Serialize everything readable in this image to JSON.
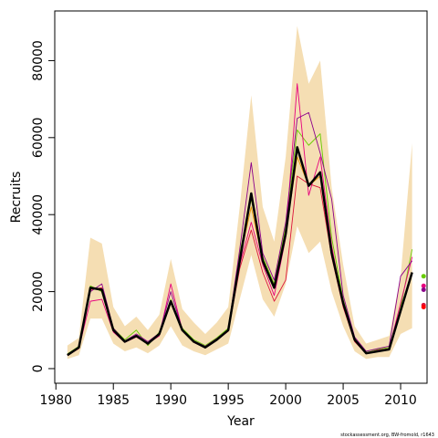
{
  "chart_data": {
    "type": "line",
    "xlabel": "Year",
    "ylabel": "Recruits",
    "footnote": "stockassessment.org, BW-fromold, r1643",
    "x": [
      1981,
      1982,
      1983,
      1984,
      1985,
      1986,
      1987,
      1988,
      1989,
      1990,
      1991,
      1992,
      1993,
      1994,
      1995,
      1996,
      1997,
      1998,
      1999,
      2000,
      2001,
      2002,
      2003,
      2004,
      2005,
      2006,
      2007,
      2008,
      2009,
      2010,
      2011
    ],
    "band": {
      "color": "#f5deb3",
      "upper": [
        6000,
        8000,
        34000,
        32500,
        16000,
        11000,
        13500,
        10000,
        14000,
        28500,
        15500,
        12000,
        9000,
        12000,
        16000,
        42000,
        71000,
        42000,
        33000,
        55000,
        89000,
        74000,
        80000,
        47000,
        27000,
        11000,
        6500,
        7500,
        8500,
        24000,
        58500
      ],
      "lower": [
        2500,
        3500,
        13000,
        13000,
        6500,
        4500,
        5500,
        4000,
        6000,
        11000,
        6000,
        4500,
        3500,
        5000,
        6500,
        18000,
        29500,
        18000,
        13500,
        22000,
        37000,
        30000,
        33000,
        20000,
        11000,
        4500,
        2500,
        3000,
        3000,
        9000,
        10500
      ]
    },
    "series": [
      {
        "color": "#66cc00",
        "values": [
          3800,
          5800,
          21500,
          20000,
          10500,
          7500,
          10000,
          6000,
          9500,
          18000,
          10500,
          7500,
          6000,
          8000,
          10500,
          30000,
          44000,
          29000,
          22000,
          37000,
          62000,
          58000,
          61000,
          34000,
          18000,
          8000,
          4500,
          5000,
          5500,
          16000,
          31000
        ]
      },
      {
        "color": "#e6007e",
        "values": [
          3600,
          5300,
          17500,
          18000,
          9500,
          6800,
          8200,
          6500,
          8500,
          22000,
          10000,
          6800,
          5500,
          7500,
          9800,
          27000,
          38000,
          27000,
          19000,
          34000,
          74000,
          45000,
          55000,
          32000,
          16500,
          7200,
          4000,
          4800,
          5200,
          17000,
          29000
        ]
      },
      {
        "color": "#8b008b",
        "values": [
          3700,
          5600,
          20000,
          22000,
          10500,
          7200,
          9000,
          7000,
          9200,
          20000,
          10200,
          7200,
          5800,
          7800,
          10200,
          31000,
          53500,
          30000,
          23000,
          38000,
          65000,
          66500,
          56000,
          44000,
          19000,
          8200,
          4500,
          5200,
          5800,
          24000,
          28000
        ]
      },
      {
        "color": "#dc143c",
        "values": [
          3400,
          5200,
          20500,
          21000,
          9800,
          6900,
          8400,
          6300,
          8800,
          17000,
          9800,
          6900,
          5400,
          7400,
          9700,
          26000,
          36000,
          25000,
          17500,
          23000,
          50000,
          48000,
          47000,
          29000,
          16000,
          7000,
          3900,
          4600,
          5000,
          15500,
          24500
        ]
      },
      {
        "color": "#e69500",
        "values": [
          3500,
          5400,
          21000,
          20500,
          10000,
          7000,
          8500,
          6500,
          9000,
          17500,
          10000,
          7000,
          5500,
          7500,
          10000,
          28500,
          42000,
          28000,
          21500,
          35000,
          55000,
          47500,
          50000,
          30500,
          17000,
          7500,
          4000,
          4500,
          5000,
          15000,
          25000
        ]
      },
      {
        "color": "#000000",
        "values": [
          3500,
          5500,
          21000,
          20500,
          10000,
          7000,
          8500,
          6500,
          9000,
          17500,
          10000,
          7000,
          5500,
          7500,
          10000,
          28000,
          45500,
          28000,
          21000,
          35000,
          57500,
          47500,
          51000,
          30000,
          17000,
          7500,
          4000,
          4500,
          5000,
          15000,
          25000
        ]
      }
    ],
    "endpoints": {
      "x": 2012,
      "values": [
        24000,
        21500,
        20500,
        16500,
        16000
      ],
      "colors": [
        "#66cc00",
        "#e6007e",
        "#8b008b",
        "#dc143c",
        "#ff0000"
      ]
    },
    "xlim": [
      1979.9,
      2012.3
    ],
    "ylim": [
      -3800,
      92900
    ],
    "xticks": [
      1980,
      1985,
      1990,
      1995,
      2000,
      2005,
      2010
    ],
    "yticks": [
      0,
      20000,
      40000,
      60000,
      80000
    ]
  }
}
